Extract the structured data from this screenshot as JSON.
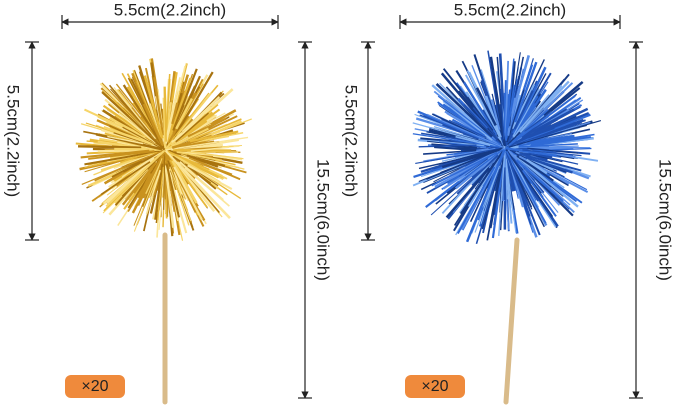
{
  "products": [
    {
      "width_label": "5.5cm(2.2inch)",
      "height_label": "5.5cm(2.2inch)",
      "length_label": "15.5cm(6.0inch)",
      "quantity": "×20"
    },
    {
      "width_label": "5.5cm(2.2inch)",
      "height_label": "5.5cm(2.2inch)",
      "length_label": "15.5cm(6.0inch)",
      "quantity": "×20"
    }
  ]
}
